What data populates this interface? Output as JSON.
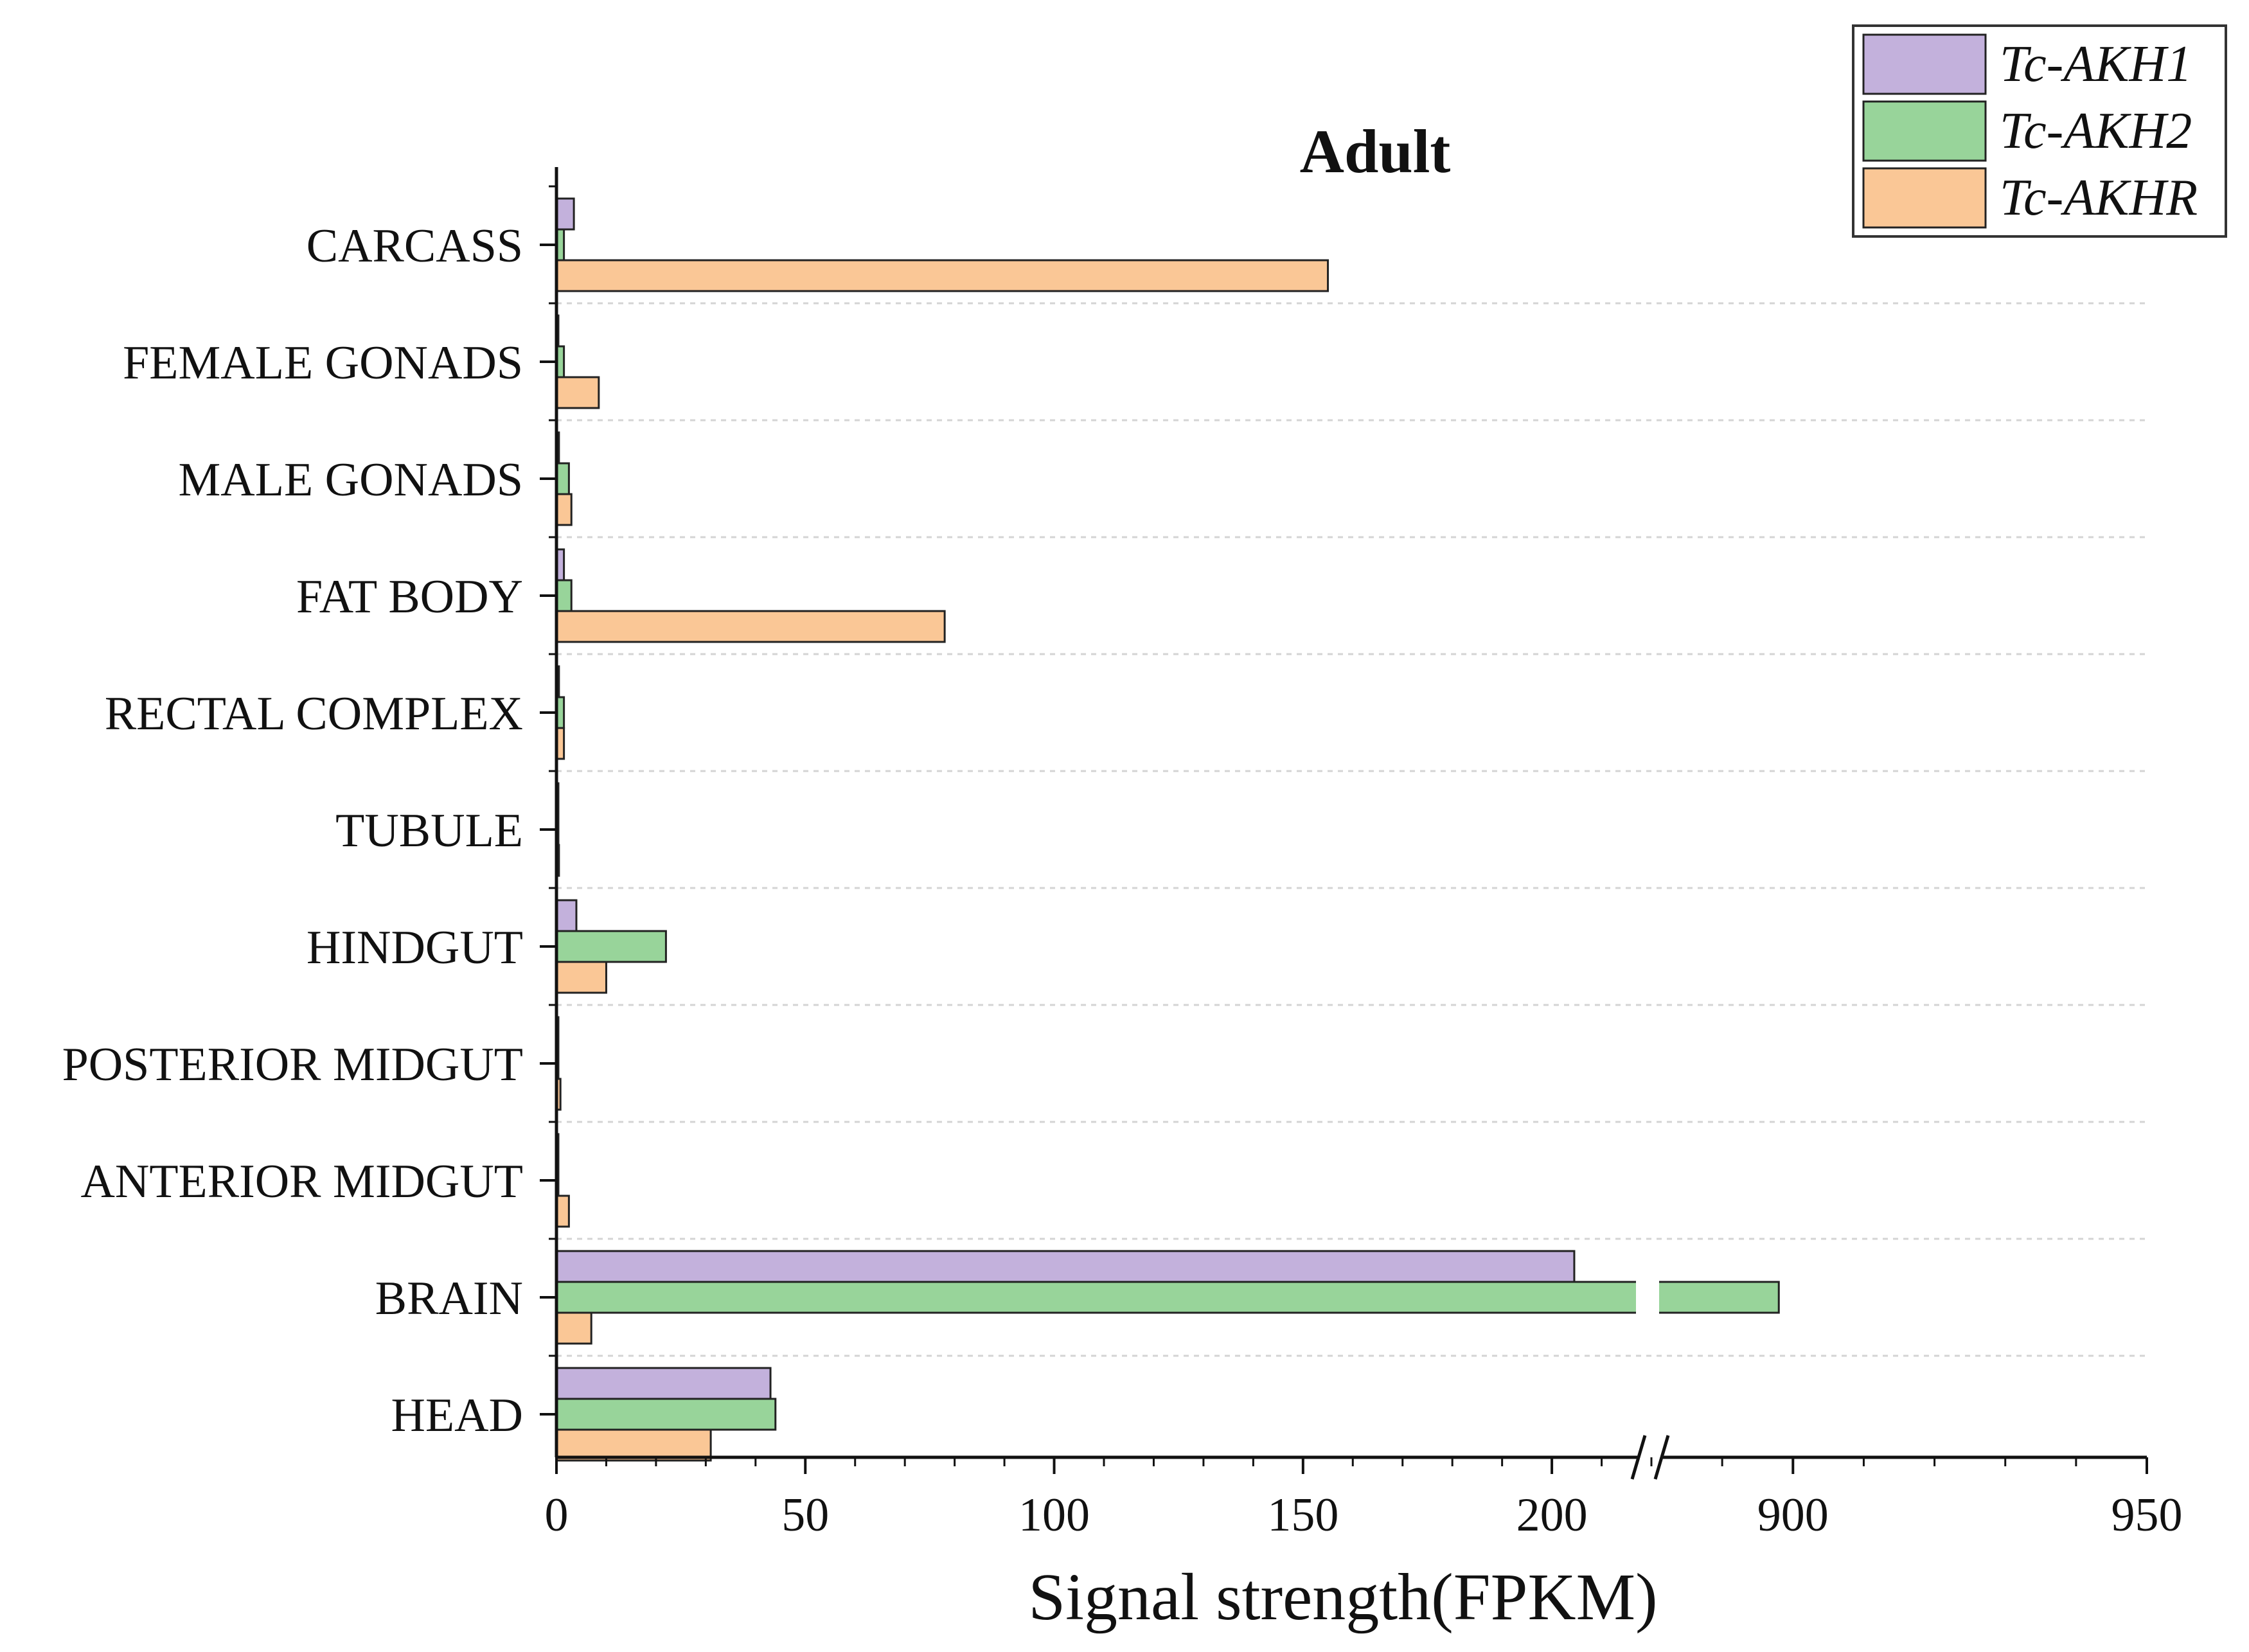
{
  "chart_data": {
    "type": "bar",
    "orientation": "horizontal",
    "title": "Adult",
    "xlabel": "Signal strength(FPKM)",
    "ylabel": "",
    "categories": [
      "CARCASS",
      "FEMALE GONADS",
      "MALE GONADS",
      "FAT BODY",
      "RECTAL COMPLEX",
      "TUBULE",
      "HINDGUT",
      "POSTERIOR MIDGUT",
      "ANTERIOR MIDGUT",
      "BRAIN",
      "HEAD"
    ],
    "series": [
      {
        "name": "Tc-AKH1",
        "color": "#C3B1DC",
        "values": [
          3.5,
          0.3,
          0.5,
          1.5,
          0.5,
          0.2,
          4,
          0.3,
          0.2,
          204.5,
          43
        ]
      },
      {
        "name": "Tc-AKH2",
        "color": "#98D49A",
        "values": [
          1.5,
          1.5,
          2.5,
          3,
          1.5,
          0.3,
          22,
          0.3,
          0.2,
          898,
          44
        ]
      },
      {
        "name": "Tc-AKHR",
        "color": "#FAC796",
        "values": [
          155,
          8.5,
          3,
          78,
          1.5,
          0.5,
          10,
          0.8,
          2.5,
          7,
          31
        ]
      }
    ],
    "axis_break": {
      "lower_range": [
        0,
        220
      ],
      "upper_range": [
        880,
        950
      ]
    },
    "xticks": [
      0,
      50,
      100,
      150,
      200,
      900,
      950
    ],
    "xtick_labels": [
      "0",
      "50",
      "100",
      "150",
      "200",
      "900",
      "950"
    ],
    "grid": "horizontal dashed",
    "legend_position": "top-right"
  }
}
